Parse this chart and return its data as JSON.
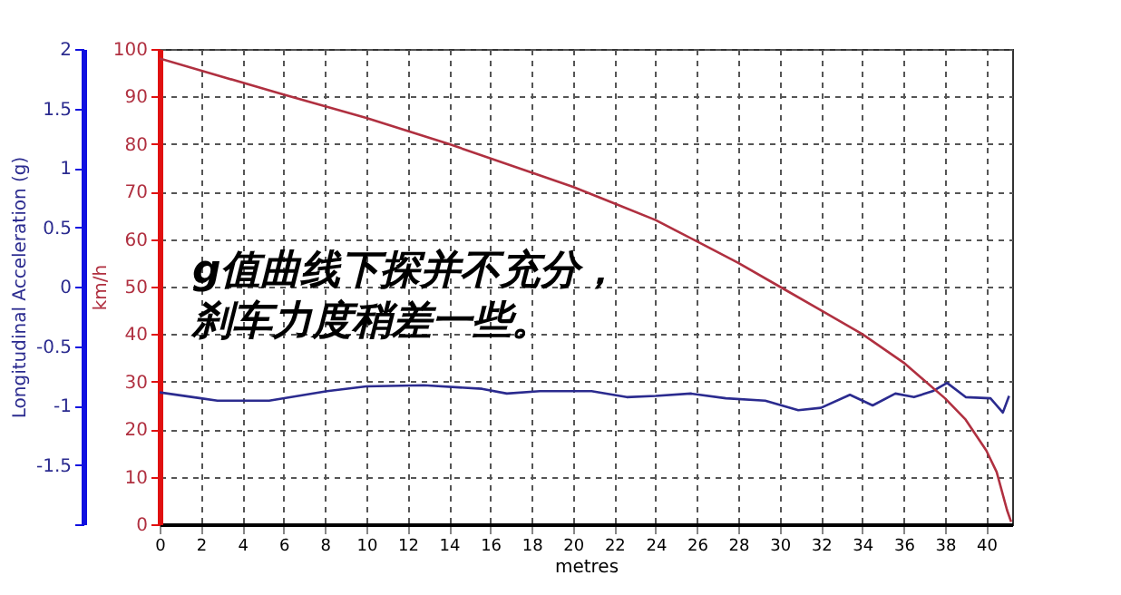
{
  "chart_data": {
    "type": "line",
    "xlabel": "metres",
    "ylabel": "Longitudinal Acceleration (g)",
    "y2label": "km/h",
    "xlim": [
      0,
      41.25
    ],
    "xticks": [
      0,
      2,
      4,
      6,
      8,
      10,
      12,
      14,
      16,
      18,
      20,
      22,
      24,
      26,
      28,
      30,
      32,
      34,
      36,
      38,
      40
    ],
    "ylim": [
      -2,
      2
    ],
    "yticks": [
      {
        "value": -2,
        "label": null
      },
      -1.5,
      -1,
      -0.5,
      0,
      0.5,
      1,
      1.5,
      2
    ],
    "y2lim": [
      0,
      100
    ],
    "y2ticks": [
      0,
      10,
      20,
      30,
      40,
      50,
      60,
      70,
      80,
      90,
      100
    ],
    "grid": true,
    "line_style": "solid",
    "annotations": [
      "g值曲线下探并不充分，刹车力度稍差一些。"
    ],
    "series": [
      {
        "color": "#2b2b8f",
        "axis": "y",
        "x": [
          0,
          2,
          2.8,
          5.3,
          8.1,
          10,
          12.8,
          15.6,
          16.8,
          18.4,
          20.9,
          22.6,
          24,
          25.7,
          27.4,
          29.3,
          30.9,
          32,
          33.4,
          34.5,
          35.6,
          36.5,
          37.4,
          38.1,
          39,
          40.2,
          40.8,
          41.1
        ],
        "values": [
          -0.89,
          -0.94,
          -0.96,
          -0.96,
          -0.88,
          -0.84,
          -0.83,
          -0.86,
          -0.9,
          -0.88,
          -0.88,
          -0.93,
          -0.92,
          -0.9,
          -0.94,
          -0.96,
          -1.04,
          -1.02,
          -0.91,
          -1.0,
          -0.9,
          -0.93,
          -0.88,
          -0.81,
          -0.93,
          -0.94,
          -1.06,
          -0.92
        ]
      },
      {
        "color": "#b03040",
        "axis": "y2",
        "x": [
          0,
          6,
          10,
          14,
          18,
          20,
          22,
          24,
          26,
          28,
          30,
          32,
          34,
          36,
          38,
          39,
          40,
          40.5,
          41,
          41.2
        ],
        "values": [
          98,
          90.4,
          85.5,
          80,
          74,
          71,
          67.5,
          64,
          59.5,
          55,
          50,
          45,
          40,
          34,
          26.5,
          22,
          15.5,
          11,
          3,
          0.5
        ]
      }
    ]
  }
}
